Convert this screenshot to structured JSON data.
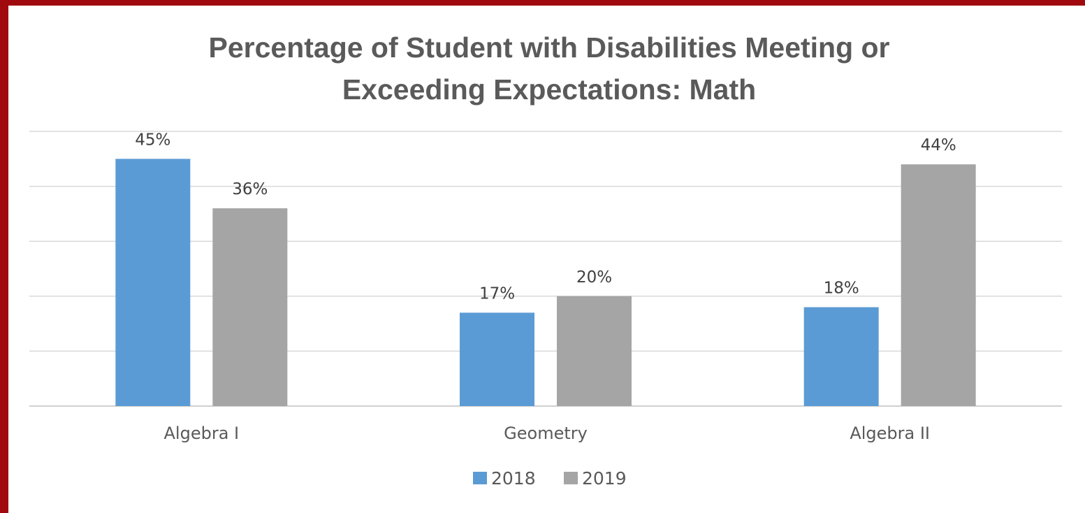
{
  "chart_data": {
    "type": "bar",
    "title_lines": [
      "Percentage of Student with Disabilities Meeting or",
      "Exceeding Expectations: Math"
    ],
    "categories": [
      "Algebra I",
      "Geometry",
      "Algebra II"
    ],
    "series": [
      {
        "name": "2018",
        "color": "#5b9bd5",
        "values": [
          45,
          17,
          18
        ],
        "labels": [
          "45%",
          "17%",
          "18%"
        ]
      },
      {
        "name": "2019",
        "color": "#a5a5a5",
        "values": [
          36,
          20,
          44
        ],
        "labels": [
          "36%",
          "20%",
          "44%"
        ]
      }
    ],
    "ylim": [
      0,
      50
    ],
    "grid": true,
    "legend": "bottom",
    "xlabel": "",
    "ylabel": ""
  }
}
